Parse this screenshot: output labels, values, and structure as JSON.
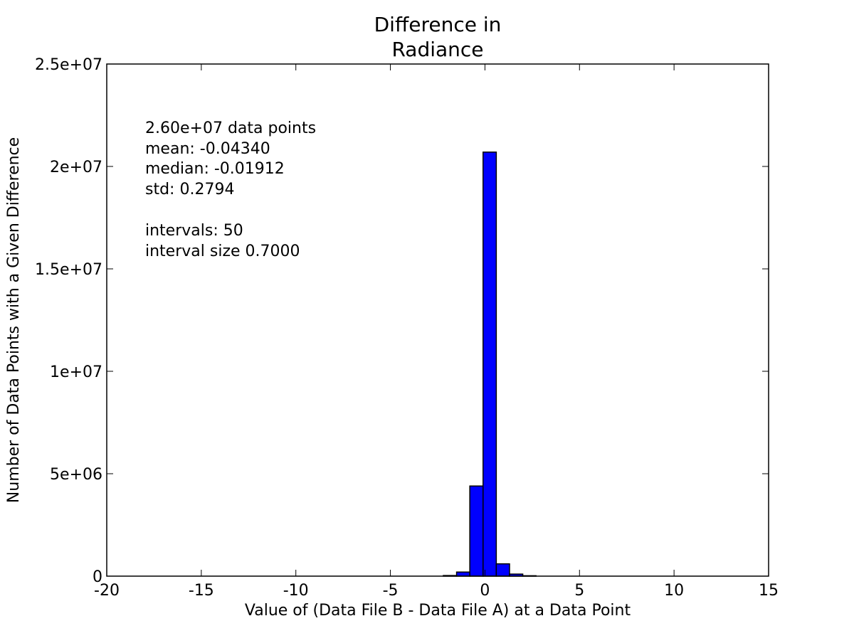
{
  "chart_data": {
    "type": "bar",
    "title": [
      "Difference in",
      "Radiance"
    ],
    "xlabel": "Value of (Data File B - Data File A) at a Data Point",
    "ylabel": "Number of Data Points with a Given Difference",
    "xlim": [
      -20,
      15
    ],
    "ylim": [
      0,
      25000000
    ],
    "xticks": [
      -20,
      -15,
      -10,
      -5,
      0,
      5,
      10,
      15
    ],
    "xtick_labels": [
      "-20",
      "-15",
      "-10",
      "-5",
      "0",
      "5",
      "10",
      "15"
    ],
    "yticks": [
      0,
      5000000,
      10000000,
      15000000,
      20000000,
      25000000
    ],
    "ytick_labels": [
      "0",
      "5e+06",
      "1e+07",
      "1.5e+07",
      "2e+07",
      "2.5e+07"
    ],
    "grid": false,
    "bar_color": "#0000ff",
    "edge_color": "#000000",
    "bins": [
      {
        "x0": -2.2,
        "x1": -1.5,
        "value": 30000
      },
      {
        "x0": -1.5,
        "x1": -0.8,
        "value": 200000
      },
      {
        "x0": -0.8,
        "x1": -0.1,
        "value": 4400000
      },
      {
        "x0": -0.1,
        "x1": 0.6,
        "value": 20700000
      },
      {
        "x0": 0.6,
        "x1": 1.3,
        "value": 600000
      },
      {
        "x0": 1.3,
        "x1": 2.0,
        "value": 100000
      },
      {
        "x0": 2.0,
        "x1": 2.7,
        "value": 20000
      }
    ],
    "annotations": [
      "2.60e+07 data points",
      "mean: -0.04340",
      "median: -0.01912",
      "std: 0.2794",
      "",
      "intervals: 50",
      "interval size 0.7000"
    ]
  }
}
